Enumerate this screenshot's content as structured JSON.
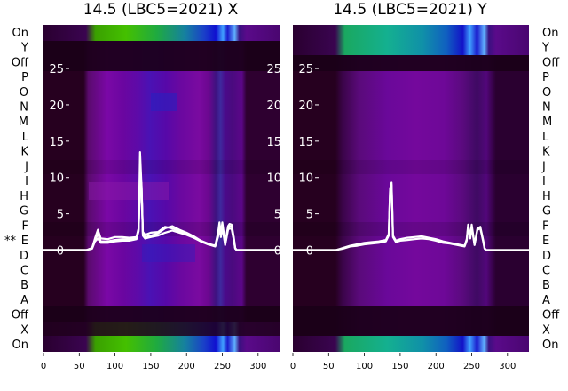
{
  "chart_data": [
    {
      "type": "heatmap",
      "title": "14.5 (LBC5=2021) X",
      "xlim": [
        0,
        330
      ],
      "ylim": [
        -14,
        31
      ],
      "x_ticks": [
        0,
        50,
        100,
        150,
        200,
        250,
        300
      ],
      "y_ticks": [
        0,
        5,
        10,
        15,
        20,
        25
      ],
      "row_labels": [
        "On",
        "Y",
        "Off",
        "P",
        "O",
        "N",
        "M",
        "L",
        "K",
        "J",
        "I",
        "H",
        "G",
        "F",
        "E",
        "D",
        "C",
        "B",
        "A",
        "Off",
        "X",
        "On"
      ],
      "marked_row": {
        "label": "E",
        "marker": "**"
      },
      "series": [
        {
          "x": [
            0,
            60,
            68,
            72,
            76,
            80,
            90,
            100,
            110,
            120,
            130,
            133,
            135,
            137,
            139,
            142,
            150,
            160,
            170,
            180,
            190,
            200,
            210,
            220,
            230,
            240,
            244,
            246,
            248,
            250,
            254,
            258,
            260,
            263,
            266,
            268,
            270,
            280,
            300,
            320,
            330
          ],
          "y": [
            0,
            0,
            0.3,
            1.6,
            2.8,
            1.6,
            1.5,
            1.8,
            1.8,
            1.7,
            1.8,
            3.0,
            8.5,
            9.0,
            2.5,
            2.1,
            2.4,
            2.5,
            3.2,
            3.0,
            2.6,
            2.2,
            1.8,
            1.2,
            0.8,
            0.6,
            2.4,
            3.8,
            2.2,
            3.8,
            1.0,
            3.3,
            3.6,
            3.5,
            1.8,
            0.3,
            0,
            0,
            0,
            0,
            0
          ]
        },
        {
          "x": [
            0,
            60,
            68,
            72,
            76,
            80,
            90,
            100,
            110,
            120,
            130,
            133,
            135,
            137,
            139,
            142,
            150,
            160,
            170,
            180,
            190,
            200,
            210,
            220,
            230,
            240,
            244,
            246,
            248,
            250,
            254,
            258,
            260,
            263,
            266,
            268,
            270,
            280,
            300,
            320,
            330
          ],
          "y": [
            0,
            0,
            0.3,
            1.4,
            2.2,
            1.2,
            1.2,
            1.4,
            1.5,
            1.5,
            1.7,
            2.8,
            8.8,
            9.3,
            2.3,
            1.8,
            2.0,
            2.3,
            3.0,
            3.3,
            2.8,
            2.4,
            1.9,
            1.3,
            0.9,
            0.6,
            2.0,
            3.5,
            2.0,
            3.5,
            0.8,
            3.0,
            3.3,
            3.2,
            1.6,
            0.3,
            0,
            0,
            0,
            0,
            0
          ]
        },
        {
          "x": [
            0,
            60,
            68,
            72,
            76,
            80,
            90,
            100,
            110,
            120,
            130,
            133,
            135,
            137,
            139,
            142,
            150,
            160,
            170,
            180,
            190,
            200,
            210,
            220,
            230,
            240,
            244,
            246,
            248,
            250,
            254,
            258,
            260,
            263,
            266,
            268,
            270,
            280,
            300,
            320,
            330
          ],
          "y": [
            0,
            0,
            0.2,
            1.2,
            1.6,
            1.0,
            1.0,
            1.2,
            1.3,
            1.3,
            1.5,
            2.6,
            13.5,
            9.0,
            2.0,
            1.6,
            1.8,
            2.0,
            2.4,
            2.7,
            2.4,
            2.1,
            1.7,
            1.2,
            0.8,
            0.5,
            1.8,
            3.2,
            1.8,
            3.2,
            0.7,
            2.8,
            3.0,
            2.9,
            1.4,
            0.2,
            0,
            0,
            0,
            0,
            0
          ]
        }
      ]
    },
    {
      "type": "heatmap",
      "title": "14.5 (LBC5=2021) Y",
      "xlim": [
        0,
        330
      ],
      "ylim": [
        -14,
        31
      ],
      "x_ticks": [
        0,
        50,
        100,
        150,
        200,
        250,
        300
      ],
      "y_ticks": [
        0,
        5,
        10,
        15,
        20,
        25
      ],
      "row_labels": [
        "On",
        "Y",
        "Off",
        "P",
        "O",
        "N",
        "M",
        "L",
        "K",
        "J",
        "I",
        "H",
        "G",
        "F",
        "E",
        "D",
        "C",
        "B",
        "A",
        "Off",
        "X",
        "On"
      ],
      "series": [
        {
          "x": [
            0,
            60,
            70,
            80,
            90,
            100,
            110,
            120,
            130,
            134,
            136,
            138,
            140,
            144,
            150,
            160,
            170,
            180,
            190,
            200,
            210,
            220,
            230,
            240,
            243,
            245,
            248,
            250,
            254,
            258,
            262,
            266,
            268,
            270,
            280,
            300,
            320,
            330
          ],
          "y": [
            0,
            0,
            0.3,
            0.6,
            0.8,
            1.0,
            1.1,
            1.2,
            1.4,
            2.2,
            8.5,
            9.3,
            2.0,
            1.3,
            1.5,
            1.7,
            1.8,
            1.9,
            1.7,
            1.5,
            1.2,
            1.0,
            0.8,
            0.6,
            1.5,
            3.5,
            1.8,
            3.5,
            0.8,
            3.0,
            3.2,
            1.4,
            0.3,
            0,
            0,
            0,
            0,
            0
          ]
        },
        {
          "x": [
            0,
            60,
            70,
            80,
            90,
            100,
            110,
            120,
            130,
            134,
            136,
            138,
            140,
            144,
            150,
            160,
            170,
            180,
            190,
            200,
            210,
            220,
            230,
            240,
            243,
            245,
            248,
            250,
            254,
            258,
            262,
            266,
            268,
            270,
            280,
            300,
            320,
            330
          ],
          "y": [
            0,
            0,
            0.2,
            0.5,
            0.6,
            0.8,
            0.9,
            1.0,
            1.2,
            2.0,
            8.2,
            9.0,
            1.8,
            1.1,
            1.3,
            1.4,
            1.5,
            1.6,
            1.5,
            1.3,
            1.0,
            0.9,
            0.7,
            0.5,
            1.3,
            3.2,
            1.6,
            3.2,
            0.7,
            2.8,
            3.0,
            1.2,
            0.2,
            0,
            0,
            0,
            0,
            0
          ]
        }
      ]
    }
  ]
}
